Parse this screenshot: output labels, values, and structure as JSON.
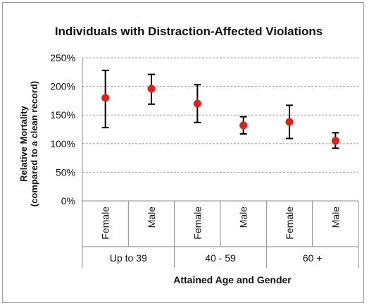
{
  "chart_data": {
    "type": "scatter",
    "title": "Individuals with Distraction-Affected Violations",
    "ylabel_line1": "Relative Mortality",
    "ylabel_line2": "(compared to a clean record)",
    "xlabel": "Attained Age and Gender",
    "ylim": [
      0,
      250
    ],
    "y_ticks": [
      "0%",
      "50%",
      "100%",
      "150%",
      "200%",
      "250%"
    ],
    "y_tick_values": [
      0,
      50,
      100,
      150,
      200,
      250
    ],
    "grid": true,
    "categories": [
      "Female",
      "Male",
      "Female",
      "Male",
      "Female",
      "Male"
    ],
    "groups": [
      "Up to 39",
      "40 - 59",
      "60 +"
    ],
    "values": [
      180,
      196,
      170,
      132,
      138,
      105
    ],
    "error_low": [
      128,
      169,
      137,
      117,
      109,
      92
    ],
    "error_high": [
      228,
      221,
      203,
      147,
      167,
      119
    ],
    "marker_color": "#e0201b",
    "errorbar_color": "#000000",
    "grid_color": "#a6a6a6"
  }
}
